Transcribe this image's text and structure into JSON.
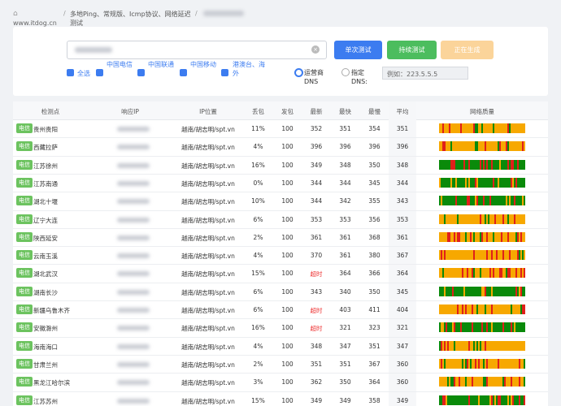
{
  "header": {
    "site": "www.itdog.cn",
    "separator": "/",
    "page": "多地Ping、常规版、Icmp协议、网络延迟测试"
  },
  "form": {
    "buttons": [
      "单次测试",
      "持续测试",
      "正在生成"
    ],
    "checkboxes": [
      "全选",
      "中国电信",
      "中国联通",
      "中国移动",
      "港澳台、海外"
    ],
    "dns_options": [
      "运营商DNS",
      "指定DNS:"
    ],
    "dns_placeholder": "例如：223.5.5.5"
  },
  "table": {
    "columns": [
      "检测点",
      "响应IP",
      "IP位置",
      "丢包",
      "发包",
      "最新",
      "最快",
      "最慢",
      "平均",
      "网络质量"
    ],
    "rows": [
      {
        "isp": "电信",
        "location": "贵州贵阳",
        "ip_location": "越南/胡志明/spt.vn",
        "loss": "11%",
        "sent": "100",
        "latest": "352",
        "fastest": "351",
        "slowest": "354",
        "average": "351",
        "quality_color": "#f7a800"
      },
      {
        "isp": "电信",
        "location": "西藏拉萨",
        "ip_location": "越南/胡志明/spt.vn",
        "loss": "4%",
        "sent": "100",
        "latest": "396",
        "fastest": "396",
        "slowest": "396",
        "average": "396",
        "quality_color": "#f7a800"
      },
      {
        "isp": "电信",
        "location": "江苏徐州",
        "ip_location": "越南/胡志明/spt.vn",
        "loss": "16%",
        "sent": "100",
        "latest": "349",
        "fastest": "348",
        "slowest": "350",
        "average": "348",
        "quality_color": "#0a8a0a"
      },
      {
        "isp": "电信",
        "location": "江苏南通",
        "ip_location": "越南/胡志明/spt.vn",
        "loss": "0%",
        "sent": "100",
        "latest": "344",
        "fastest": "344",
        "slowest": "345",
        "average": "344",
        "quality_color": "#0a8a0a"
      },
      {
        "isp": "电信",
        "location": "湖北十堰",
        "ip_location": "越南/胡志明/spt.vn",
        "loss": "10%",
        "sent": "100",
        "latest": "344",
        "fastest": "342",
        "slowest": "355",
        "average": "343",
        "quality_color": "#0a8a0a"
      },
      {
        "isp": "电信",
        "location": "辽宁大连",
        "ip_location": "越南/胡志明/spt.vn",
        "loss": "6%",
        "sent": "100",
        "latest": "353",
        "fastest": "353",
        "slowest": "356",
        "average": "353",
        "quality_color": "#f7a800"
      },
      {
        "isp": "电信",
        "location": "陕西延安",
        "ip_location": "越南/胡志明/spt.vn",
        "loss": "2%",
        "sent": "100",
        "latest": "361",
        "fastest": "361",
        "slowest": "368",
        "average": "361",
        "quality_color": "#f7a800"
      },
      {
        "isp": "电信",
        "location": "云南玉溪",
        "ip_location": "越南/胡志明/spt.vn",
        "loss": "4%",
        "sent": "100",
        "latest": "370",
        "fastest": "361",
        "slowest": "380",
        "average": "367",
        "quality_color": "#f7a800"
      },
      {
        "isp": "电信",
        "location": "湖北武汉",
        "ip_location": "越南/胡志明/spt.vn",
        "loss": "15%",
        "sent": "100",
        "latest": "超时",
        "fastest": "364",
        "slowest": "366",
        "average": "364",
        "quality_color": "#f7a800"
      },
      {
        "isp": "电信",
        "location": "湖南长沙",
        "ip_location": "越南/胡志明/spt.vn",
        "loss": "6%",
        "sent": "100",
        "latest": "343",
        "fastest": "340",
        "slowest": "350",
        "average": "345",
        "quality_color": "#0a8a0a"
      },
      {
        "isp": "电信",
        "location": "新疆乌鲁木齐",
        "ip_location": "越南/胡志明/spt.vn",
        "loss": "6%",
        "sent": "100",
        "latest": "超时",
        "fastest": "403",
        "slowest": "411",
        "average": "404",
        "quality_color": "#f7a800"
      },
      {
        "isp": "电信",
        "location": "安徽滁州",
        "ip_location": "越南/胡志明/spt.vn",
        "loss": "16%",
        "sent": "100",
        "latest": "超时",
        "fastest": "321",
        "slowest": "323",
        "average": "321",
        "quality_color": "#0a8a0a"
      },
      {
        "isp": "电信",
        "location": "海南海口",
        "ip_location": "越南/胡志明/spt.vn",
        "loss": "4%",
        "sent": "100",
        "latest": "348",
        "fastest": "347",
        "slowest": "351",
        "average": "347",
        "quality_color": "#f7a800"
      },
      {
        "isp": "电信",
        "location": "甘肃兰州",
        "ip_location": "越南/胡志明/spt.vn",
        "loss": "2%",
        "sent": "100",
        "latest": "351",
        "fastest": "351",
        "slowest": "367",
        "average": "360",
        "quality_color": "#f7a800"
      },
      {
        "isp": "电信",
        "location": "黑龙江哈尔滨",
        "ip_location": "越南/胡志明/spt.vn",
        "loss": "3%",
        "sent": "100",
        "latest": "362",
        "fastest": "350",
        "slowest": "364",
        "average": "360",
        "quality_color": "#f7a800"
      },
      {
        "isp": "电信",
        "location": "江苏苏州",
        "ip_location": "越南/胡志明/spt.vn",
        "loss": "15%",
        "sent": "100",
        "latest": "349",
        "fastest": "349",
        "slowest": "358",
        "average": "349",
        "quality_color": "#0a8a0a"
      }
    ]
  }
}
